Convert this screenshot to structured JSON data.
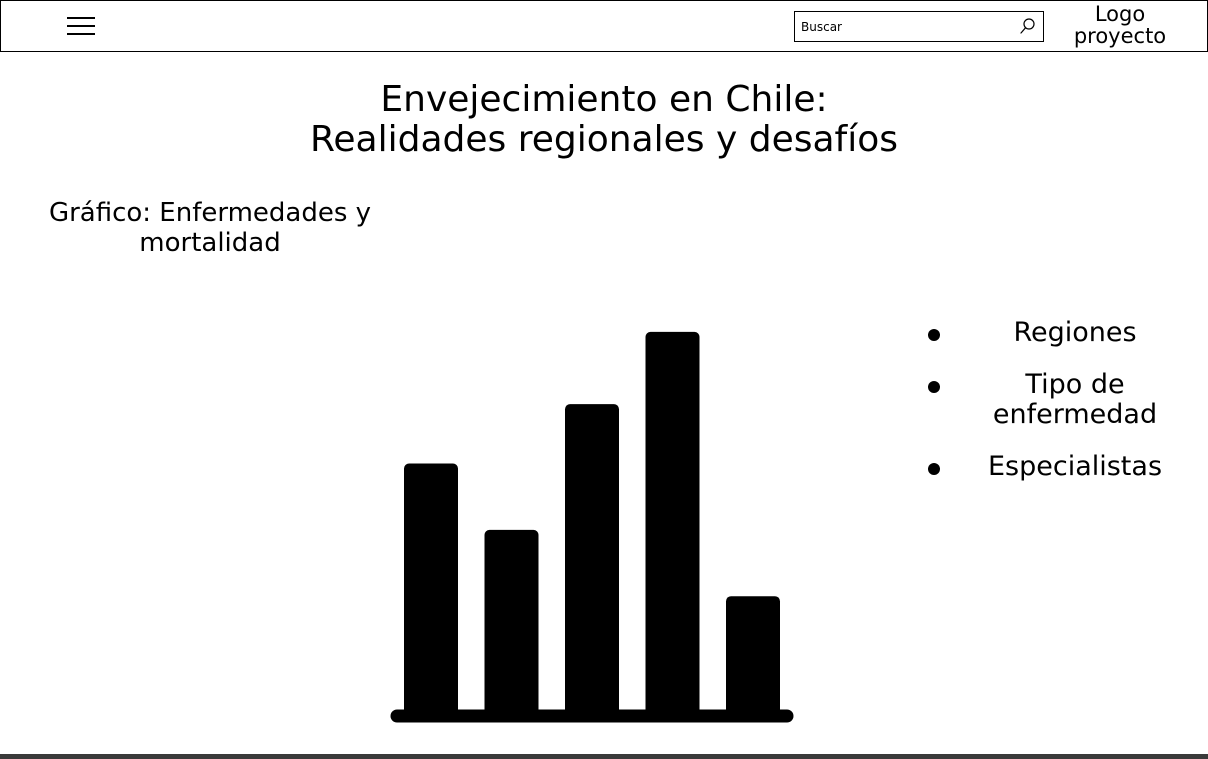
{
  "header": {
    "menu_icon": "hamburger-menu-icon",
    "search": {
      "placeholder": "Buscar",
      "icon": "search-icon"
    },
    "logo_line1": "Logo",
    "logo_line2": "proyecto"
  },
  "main": {
    "title_line1": "Envejecimiento en Chile:",
    "title_line2": "Realidades regionales y desafíos",
    "section_title_line1": "Gráfico: Enfermedades y",
    "section_title_line2": "mortalidad"
  },
  "chart_data": {
    "type": "bar",
    "categories": [
      "",
      "",
      "",
      "",
      ""
    ],
    "values": [
      255,
      188,
      315,
      388,
      121
    ],
    "title": "",
    "xlabel": "",
    "ylabel": "",
    "ylim": [
      0,
      400
    ],
    "color": "#000000",
    "grid": false
  },
  "options": {
    "items": [
      {
        "label": "Regiones"
      },
      {
        "label_line1": "Tipo de",
        "label_line2": "enfermedad"
      },
      {
        "label": "Especialistas"
      }
    ]
  },
  "colors": {
    "background": "#ffffff",
    "foreground": "#000000",
    "bottom_bar": "#3a3a3a"
  }
}
